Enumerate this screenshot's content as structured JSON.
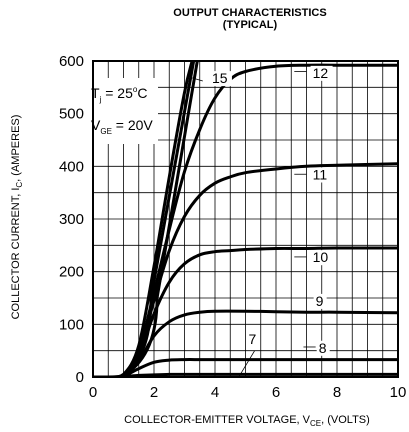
{
  "chart_data": {
    "type": "line",
    "title_line1": "OUTPUT CHARACTERISTICS",
    "title_line2": "(TYPICAL)",
    "xlabel": "COLLECTOR-EMITTER VOLTAGE, V",
    "xlabel_sub": "CE",
    "xlabel_suffix": ", (VOLTS)",
    "ylabel": "COLLECTOR CURRENT, I",
    "ylabel_sub": "C",
    "ylabel_suffix": ", (AMPERES)",
    "xlim": [
      0,
      10
    ],
    "ylim": [
      0,
      600
    ],
    "xticks": [
      "0",
      "2",
      "4",
      "6",
      "8",
      "10"
    ],
    "yticks": [
      "0",
      "100",
      "200",
      "300",
      "400",
      "500",
      "600"
    ],
    "grid": true,
    "annotations": {
      "tj_label": "T",
      "tj_sub": "j",
      "tj_value": " = 25",
      "tj_deg": "o",
      "tj_unit": "C",
      "vge_label": "V",
      "vge_sub": "GE",
      "vge_value": " = 20V"
    },
    "series": [
      {
        "name": "15",
        "x": [
          0,
          0.5,
          1.0,
          1.5,
          2.0,
          2.5,
          3.0,
          3.25
        ],
        "y": [
          0,
          0,
          5,
          60,
          210,
          380,
          540,
          600
        ]
      },
      {
        "name": "12",
        "x": [
          0,
          0.5,
          1.0,
          1.5,
          2.0,
          2.5,
          3.0,
          3.5,
          4.0,
          4.5,
          5.0,
          6.0,
          7.0,
          8.0,
          10.0
        ],
        "y": [
          0,
          0,
          5,
          50,
          160,
          280,
          390,
          470,
          530,
          565,
          580,
          590,
          592,
          592,
          592
        ]
      },
      {
        "name": "11",
        "x": [
          0,
          0.5,
          1.0,
          1.5,
          2.0,
          2.5,
          3.0,
          3.5,
          4.0,
          4.5,
          5.0,
          6.0,
          7.0,
          8.0,
          10.0
        ],
        "y": [
          0,
          0,
          5,
          45,
          145,
          240,
          305,
          345,
          368,
          380,
          388,
          395,
          400,
          402,
          405
        ]
      },
      {
        "name": "10",
        "x": [
          0,
          0.5,
          1.0,
          1.5,
          2.0,
          2.5,
          3.0,
          3.5,
          4.0,
          4.5,
          5.0,
          6.0,
          7.0,
          8.0,
          10.0
        ],
        "y": [
          0,
          0,
          4,
          40,
          120,
          180,
          215,
          232,
          238,
          240,
          242,
          244,
          244,
          245,
          245
        ]
      },
      {
        "name": "9",
        "x": [
          0,
          0.5,
          1.0,
          1.5,
          2.0,
          2.5,
          3.0,
          3.5,
          4.0,
          5.0,
          6.0,
          7.0,
          8.0,
          10.0
        ],
        "y": [
          0,
          0,
          3,
          30,
          78,
          105,
          118,
          123,
          125,
          125,
          124,
          123,
          123,
          122
        ]
      },
      {
        "name": "8",
        "x": [
          0,
          0.5,
          1.0,
          1.5,
          2.0,
          2.5,
          3.0,
          3.5,
          4.0,
          6.0,
          8.0,
          10.0
        ],
        "y": [
          0,
          0,
          2,
          16,
          28,
          32,
          33,
          33,
          33,
          33,
          33,
          33
        ]
      },
      {
        "name": "7",
        "x": [
          0,
          0.5,
          1.0,
          1.5,
          2.0,
          2.5,
          3.0,
          4.0,
          6.0,
          8.0,
          10.0
        ],
        "y": [
          0,
          0,
          1,
          3,
          4,
          5,
          5,
          5,
          5,
          5,
          5
        ]
      }
    ],
    "curve_labels": [
      {
        "text": "15",
        "x": 3.9,
        "y": 558,
        "lx1": 3.25,
        "ly1": 568,
        "lx2": 3.6,
        "ly2": 562
      },
      {
        "text": "12",
        "x": 7.2,
        "y": 568,
        "lx1": 6.6,
        "ly1": 580,
        "lx2": 7.0,
        "ly2": 580
      },
      {
        "text": "11",
        "x": 7.2,
        "y": 375,
        "lx1": 6.6,
        "ly1": 385,
        "lx2": 7.0,
        "ly2": 385
      },
      {
        "text": "10",
        "x": 7.2,
        "y": 218,
        "lx1": 6.6,
        "ly1": 228,
        "lx2": 7.0,
        "ly2": 228
      },
      {
        "text": "9",
        "x": 7.3,
        "y": 135,
        "lx1": 6.8,
        "ly1": 122,
        "lx2": 7.2,
        "ly2": 122
      },
      {
        "text": "8",
        "x": 7.4,
        "y": 46,
        "lx1": 6.9,
        "ly1": 57,
        "lx2": 7.3,
        "ly2": 57
      },
      {
        "text": "7",
        "x": 5.1,
        "y": 63,
        "lx1": 4.8,
        "ly1": 2,
        "lx2": 5.3,
        "ly2": 50
      }
    ]
  }
}
